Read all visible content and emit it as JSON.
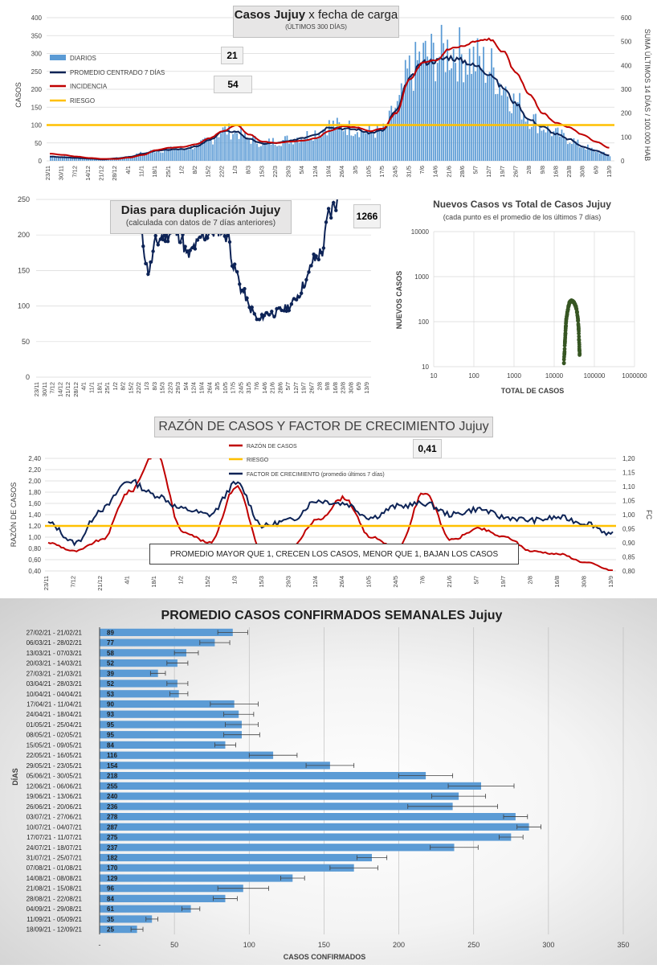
{
  "colors": {
    "bars": "#5b9bd5",
    "navy": "#0d2356",
    "red": "#c00000",
    "yellow": "#ffc000",
    "green": "#375623",
    "grid": "#d9d9d9"
  },
  "dates_a": [
    "23/11",
    "30/11",
    "7/12",
    "14/12",
    "21/12",
    "28/12",
    "4/1",
    "11/1",
    "18/1",
    "25/1",
    "1/2",
    "8/2",
    "15/2",
    "22/2",
    "1/3",
    "8/3",
    "15/3",
    "22/3",
    "29/3",
    "5/4",
    "12/4",
    "19/4",
    "26/4",
    "3/5",
    "10/5",
    "17/5",
    "24/5",
    "31/5",
    "7/6",
    "14/6",
    "21/6",
    "28/6",
    "5/7",
    "12/7",
    "19/7",
    "26/7",
    "2/8",
    "9/8",
    "16/8",
    "23/8",
    "30/8",
    "6/9",
    "13/9"
  ],
  "dates_b": [
    "23/11",
    "30/11",
    "7/12",
    "14/12",
    "21/12",
    "28/12",
    "4/1",
    "11/1",
    "18/1",
    "25/1",
    "1/2",
    "8/2",
    "15/2",
    "22/2",
    "1/3",
    "8/3",
    "15/3",
    "22/3",
    "29/3",
    "5/4",
    "12/4",
    "19/4",
    "26/4",
    "3/5",
    "10/5",
    "17/5",
    "24/5",
    "31/5",
    "7/6",
    "14/6",
    "21/6",
    "28/6",
    "5/7",
    "12/7",
    "19/7",
    "26/7",
    "2/8",
    "9/8",
    "16/8",
    "23/8",
    "30/8",
    "6/9",
    "13/9"
  ],
  "dates_c": [
    "23/11",
    "7/12",
    "21/12",
    "4/1",
    "18/1",
    "1/2",
    "15/2",
    "1/3",
    "15/3",
    "29/3",
    "12/4",
    "26/4",
    "10/5",
    "24/5",
    "7/6",
    "21/6",
    "5/7",
    "19/7",
    "2/8",
    "16/8",
    "30/8",
    "13/9"
  ],
  "chart1": {
    "title_bold": "Casos Jujuy",
    "title_rest": " x fecha de carga",
    "subtitle": "(ÚLTIMOS 300 DÍAS)",
    "badge1": "21",
    "badge2": "54",
    "y_left_label": "CASOS",
    "y_right_label": "SUMA  ÚLTIMOS 14 DÍAS / 100.000 HAB",
    "y_left_ticks": [
      "0",
      "50",
      "100",
      "150",
      "200",
      "250",
      "300",
      "350",
      "400"
    ],
    "y_right_ticks": [
      "0",
      "100",
      "200",
      "300",
      "400",
      "500",
      "600"
    ],
    "legend": [
      "DIARIOS",
      "PROMEDIO CENTRADO 7 DÍAS",
      "INCIDENCIA",
      "RIESGO"
    ]
  },
  "chart2": {
    "title": "Dias para duplicación Jujuy",
    "subtitle": "(calculada con datos de 7 días anteriores)",
    "badge": "1266",
    "y_ticks": [
      "0",
      "50",
      "100",
      "150",
      "200",
      "250"
    ]
  },
  "chart3": {
    "title": "Nuevos Casos vs Total de Casos Jujuy",
    "subtitle": "(cada punto es el promedio de los últimos 7 días)",
    "y_label": "NUEVOS  CASOS",
    "x_label": "TOTAL DE CASOS",
    "y_ticks": [
      "10",
      "100",
      "1000",
      "10000"
    ],
    "x_ticks": [
      "10",
      "100",
      "1000",
      "10000",
      "100000",
      "1000000"
    ]
  },
  "chart4": {
    "title_main": "RAZÓN DE CASOS Y FACTOR DE CRECIMIENTO",
    "title_place": " Jujuy",
    "badge": "0,41",
    "legend": [
      "RAZÓN DE CASOS",
      "RIESGO",
      "FACTOR DE CRECIMIENTO (promedio últimos 7 días)"
    ],
    "note": "PROMEDIO MAYOR QUE 1, CRECEN LOS CASOS, MENOR QUE 1, BAJAN LOS CASOS",
    "y_left_label": "RAZÓN DE CASOS",
    "y_right_label": "FC",
    "y_left_ticks": [
      "0,40",
      "0,60",
      "0,80",
      "1,00",
      "1,20",
      "1,40",
      "1,60",
      "1,80",
      "2,00",
      "2,20",
      "2,40"
    ],
    "y_right_ticks": [
      "0,80",
      "0,85",
      "0,90",
      "0,95",
      "1,00",
      "1,05",
      "1,10",
      "1,15",
      "1,20"
    ]
  },
  "chart5": {
    "title": "PROMEDIO CASOS CONFIRMADOS SEMANALES Jujuy",
    "x_label": "CASOS CONFIRMADOS",
    "y_label": "DÍAS",
    "x_ticks": [
      "-",
      "50",
      "100",
      "150",
      "200",
      "250",
      "300",
      "350"
    ]
  },
  "chart_data": [
    {
      "type": "bar",
      "title": "Casos Jujuy x fecha de carga",
      "subtitle": "(ÚLTIMOS 300 DÍAS)",
      "xlabel": "",
      "ylabel": "CASOS",
      "ylim": [
        0,
        400
      ],
      "y2label": "SUMA  ÚLTIMOS 14 DÍAS / 100.000 HAB",
      "y2lim": [
        0,
        600
      ],
      "x": [
        "23/11",
        "30/11",
        "7/12",
        "14/12",
        "21/12",
        "28/12",
        "4/1",
        "11/1",
        "18/1",
        "25/1",
        "1/2",
        "8/2",
        "15/2",
        "22/2",
        "1/3",
        "8/3",
        "15/3",
        "22/3",
        "29/3",
        "5/4",
        "12/4",
        "19/4",
        "26/4",
        "3/5",
        "10/5",
        "17/5",
        "24/5",
        "31/5",
        "7/6",
        "14/6",
        "21/6",
        "28/6",
        "5/7",
        "12/7",
        "19/7",
        "26/7",
        "2/8",
        "9/8",
        "16/8",
        "23/8",
        "30/8",
        "6/9",
        "13/9"
      ],
      "series": [
        {
          "name": "DIARIOS",
          "values": [
            14,
            12,
            9,
            7,
            5,
            8,
            12,
            22,
            30,
            32,
            35,
            42,
            60,
            85,
            80,
            60,
            50,
            55,
            60,
            70,
            80,
            100,
            95,
            90,
            80,
            85,
            150,
            250,
            290,
            295,
            310,
            295,
            280,
            260,
            210,
            160,
            120,
            95,
            75,
            60,
            40,
            28,
            14
          ]
        },
        {
          "name": "PROMEDIO CENTRADO 7 DÍAS",
          "values": [
            12,
            10,
            8,
            6,
            4,
            7,
            11,
            20,
            28,
            31,
            33,
            40,
            58,
            82,
            82,
            60,
            48,
            50,
            55,
            65,
            75,
            95,
            90,
            88,
            78,
            85,
            140,
            230,
            275,
            280,
            290,
            280,
            265,
            245,
            205,
            160,
            115,
            95,
            75,
            60,
            40,
            28,
            15
          ]
        },
        {
          "name": "INCIDENCIA",
          "values": [
            30,
            25,
            18,
            12,
            8,
            8,
            14,
            25,
            45,
            55,
            58,
            70,
            95,
            125,
            150,
            110,
            80,
            75,
            80,
            85,
            95,
            125,
            145,
            140,
            125,
            135,
            200,
            340,
            410,
            420,
            470,
            480,
            500,
            510,
            460,
            370,
            280,
            200,
            160,
            140,
            110,
            80,
            55
          ]
        },
        {
          "name": "RIESGO",
          "values": [
            150,
            150,
            150,
            150,
            150,
            150,
            150,
            150,
            150,
            150,
            150,
            150,
            150,
            150,
            150,
            150,
            150,
            150,
            150,
            150,
            150,
            150,
            150,
            150,
            150,
            150,
            150,
            150,
            150,
            150,
            150,
            150,
            150,
            150,
            150,
            150,
            150,
            150,
            150,
            150,
            150,
            150,
            150
          ]
        }
      ]
    },
    {
      "type": "line",
      "title": "Dias para duplicación Jujuy",
      "subtitle": "(calculada con datos de 7 días anteriores)",
      "xlabel": "",
      "ylabel": "",
      "ylim": [
        0,
        250
      ],
      "x": [
        "22/2",
        "1/3",
        "8/3",
        "15/3",
        "22/3",
        "29/3",
        "5/4",
        "12/4",
        "19/4",
        "26/4",
        "3/5",
        "10/5",
        "17/5",
        "24/5",
        "31/5",
        "7/6",
        "14/6",
        "21/6",
        "28/6",
        "5/7",
        "12/7",
        "19/7",
        "26/7",
        "2/8",
        "9/8",
        "16/8"
      ],
      "series": [
        {
          "name": "",
          "values": [
            200,
            150,
            190,
            200,
            205,
            200,
            170,
            185,
            200,
            205,
            210,
            200,
            150,
            120,
            95,
            80,
            90,
            90,
            95,
            100,
            115,
            135,
            165,
            175,
            230,
            248
          ]
        }
      ]
    },
    {
      "type": "scatter",
      "title": "Nuevos Casos vs Total de Casos Jujuy",
      "subtitle": "(cada punto es el promedio de los últimos 7 días)",
      "xlabel": "TOTAL DE CASOS",
      "ylabel": "NUEVOS  CASOS",
      "x_scale": "log",
      "y_scale": "log",
      "xlim": [
        10,
        1000000
      ],
      "ylim": [
        10,
        10000
      ],
      "x": [
        17500,
        18000,
        18500,
        19000,
        19500,
        20000,
        21000,
        22000,
        23000,
        24000,
        25000,
        27000,
        29000,
        31000,
        33000,
        35000,
        37000,
        39000,
        40500,
        41500,
        42500,
        43000
      ],
      "y": [
        12,
        20,
        35,
        55,
        80,
        110,
        150,
        190,
        230,
        260,
        280,
        290,
        280,
        270,
        240,
        210,
        160,
        110,
        70,
        40,
        25,
        18
      ]
    },
    {
      "type": "line",
      "title": "RAZÓN DE CASOS Y FACTOR DE CRECIMIENTO Jujuy",
      "xlabel": "",
      "ylabel": "RAZÓN DE CASOS",
      "ylim": [
        0.4,
        2.4
      ],
      "y2label": "FC",
      "y2lim": [
        0.8,
        1.2
      ],
      "x": [
        "23/11",
        "7/12",
        "21/12",
        "4/1",
        "18/1",
        "1/2",
        "15/2",
        "1/3",
        "15/3",
        "29/3",
        "12/4",
        "26/4",
        "10/5",
        "24/5",
        "7/6",
        "21/6",
        "5/7",
        "19/7",
        "2/8",
        "16/8",
        "30/8",
        "13/9"
      ],
      "series": [
        {
          "name": "RAZÓN DE CASOS",
          "values": [
            0.9,
            0.75,
            0.95,
            1.8,
            2.5,
            1.1,
            0.9,
            1.9,
            0.7,
            0.8,
            1.3,
            1.7,
            1.0,
            0.8,
            1.8,
            0.95,
            1.15,
            1.0,
            0.75,
            0.7,
            0.55,
            0.41
          ]
        },
        {
          "name": "RIESGO",
          "values": [
            1.2,
            1.2,
            1.2,
            1.2,
            1.2,
            1.2,
            1.2,
            1.2,
            1.2,
            1.2,
            1.2,
            1.2,
            1.2,
            1.2,
            1.2,
            1.2,
            1.2,
            1.2,
            1.2,
            1.2,
            1.2,
            1.2
          ]
        },
        {
          "name": "FACTOR DE CRECIMIENTO (promedio últimos 7 días)",
          "values": [
            0.97,
            0.9,
            1.02,
            1.12,
            1.07,
            1.02,
            1.0,
            1.11,
            0.96,
            0.98,
            1.05,
            1.04,
            0.99,
            1.03,
            1.04,
            1.0,
            1.02,
            0.99,
            0.98,
            0.99,
            0.97,
            0.93
          ]
        }
      ]
    },
    {
      "type": "bar",
      "orientation": "horizontal",
      "title": "PROMEDIO CASOS CONFIRMADOS SEMANALES Jujuy",
      "xlabel": "CASOS CONFIRMADOS",
      "ylabel": "DÍAS",
      "xlim": [
        0,
        350
      ],
      "categories": [
        "27/02/21 - 21/02/21",
        "06/03/21 - 28/02/21",
        "13/03/21 - 07/03/21",
        "20/03/21 - 14/03/21",
        "27/03/21 - 21/03/21",
        "03/04/21 - 28/03/21",
        "10/04/21 - 04/04/21",
        "17/04/21 - 11/04/21",
        "24/04/21 - 18/04/21",
        "01/05/21 - 25/04/21",
        "08/05/21 - 02/05/21",
        "15/05/21 - 09/05/21",
        "22/05/21 - 16/05/21",
        "29/05/21 - 23/05/21",
        "05/06/21 - 30/05/21",
        "12/06/21 - 06/06/21",
        "19/06/21 - 13/06/21",
        "26/06/21 - 20/06/21",
        "03/07/21 - 27/06/21",
        "10/07/21 - 04/07/21",
        "17/07/21 - 11/07/21",
        "24/07/21 - 18/07/21",
        "31/07/21 - 25/07/21",
        "07/08/21 - 01/08/21",
        "14/08/21 - 08/08/21",
        "21/08/21 - 15/08/21",
        "28/08/21 - 22/08/21",
        "04/09/21 - 29/08/21",
        "11/09/21 - 05/09/21",
        "18/09/21 - 12/09/21"
      ],
      "values": [
        89,
        77,
        58,
        52,
        39,
        52,
        53,
        90,
        93,
        95,
        95,
        84,
        116,
        154,
        218,
        255,
        240,
        236,
        278,
        287,
        275,
        237,
        182,
        170,
        129,
        96,
        84,
        61,
        35,
        25
      ],
      "error": [
        10,
        10,
        8,
        7,
        5,
        7,
        6,
        16,
        10,
        11,
        12,
        7,
        16,
        16,
        18,
        22,
        18,
        30,
        8,
        8,
        8,
        16,
        10,
        16,
        8,
        17,
        8,
        6,
        4,
        4
      ]
    }
  ]
}
